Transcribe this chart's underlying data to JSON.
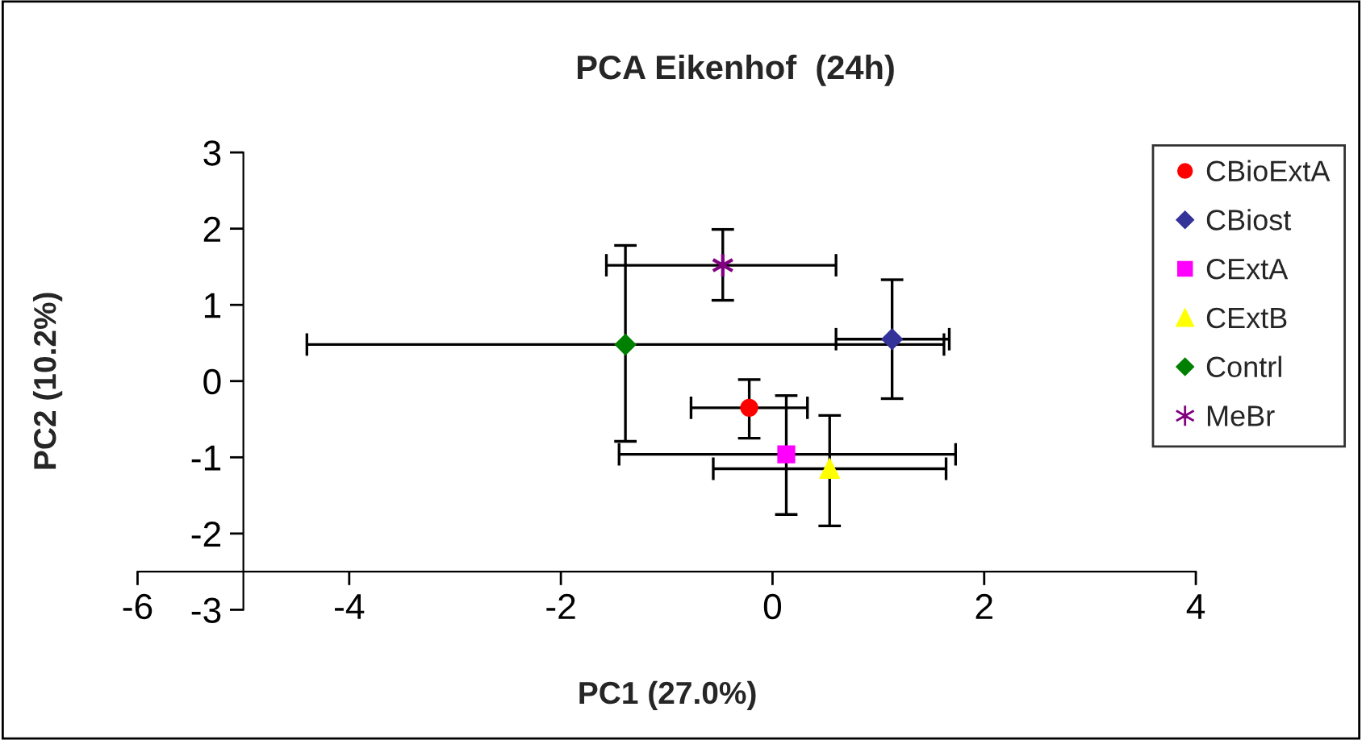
{
  "chart_data": {
    "type": "scatter",
    "title": "PCA Eikenhof  (24h)",
    "xlabel": "PC1 (27.0%)",
    "ylabel": "PC2 (10.2%)",
    "xlim": [
      -6,
      4
    ],
    "xticks": [
      -6,
      -4,
      -2,
      0,
      2,
      4
    ],
    "ylim": [
      -3,
      3
    ],
    "yticks": [
      -3,
      -2,
      -1,
      0,
      1,
      2,
      3
    ],
    "grid": false,
    "legend": "right",
    "series": [
      {
        "name": "CBioExtA",
        "color": "#ff0000",
        "marker": "circle",
        "x": [
          -0.22
        ],
        "values": [
          -0.35
        ],
        "errors": [
          [
            -0.75,
            0.02
          ]
        ],
        "xerrors": [
          [
            -0.77,
            0.33
          ]
        ]
      },
      {
        "name": "CBiost",
        "color": "#333399",
        "marker": "diamond",
        "x": [
          1.13
        ],
        "values": [
          0.55
        ],
        "errors": [
          [
            -0.23,
            1.33
          ]
        ],
        "xerrors": [
          [
            0.6,
            1.67
          ]
        ]
      },
      {
        "name": "CExtA",
        "color": "#ff00ff",
        "marker": "square",
        "x": [
          0.13
        ],
        "values": [
          -0.96
        ],
        "errors": [
          [
            -1.75,
            -0.19
          ]
        ],
        "xerrors": [
          [
            -1.45,
            1.73
          ]
        ]
      },
      {
        "name": "CExtB",
        "color": "#ffff00",
        "marker": "triangle",
        "x": [
          0.54
        ],
        "values": [
          -1.15
        ],
        "errors": [
          [
            -1.9,
            -0.45
          ]
        ],
        "xerrors": [
          [
            -0.56,
            1.64
          ]
        ]
      },
      {
        "name": "Contrl",
        "color": "#008000",
        "marker": "diamond",
        "x": [
          -1.39
        ],
        "values": [
          0.48
        ],
        "errors": [
          [
            -0.79,
            1.78
          ]
        ],
        "xerrors": [
          [
            -4.4,
            1.62
          ]
        ]
      },
      {
        "name": "MeBr",
        "color": "#800080",
        "marker": "cross",
        "x": [
          -0.47
        ],
        "values": [
          1.52
        ],
        "errors": [
          [
            1.06,
            1.99
          ]
        ],
        "xerrors": [
          [
            -1.57,
            0.6
          ]
        ]
      }
    ]
  }
}
